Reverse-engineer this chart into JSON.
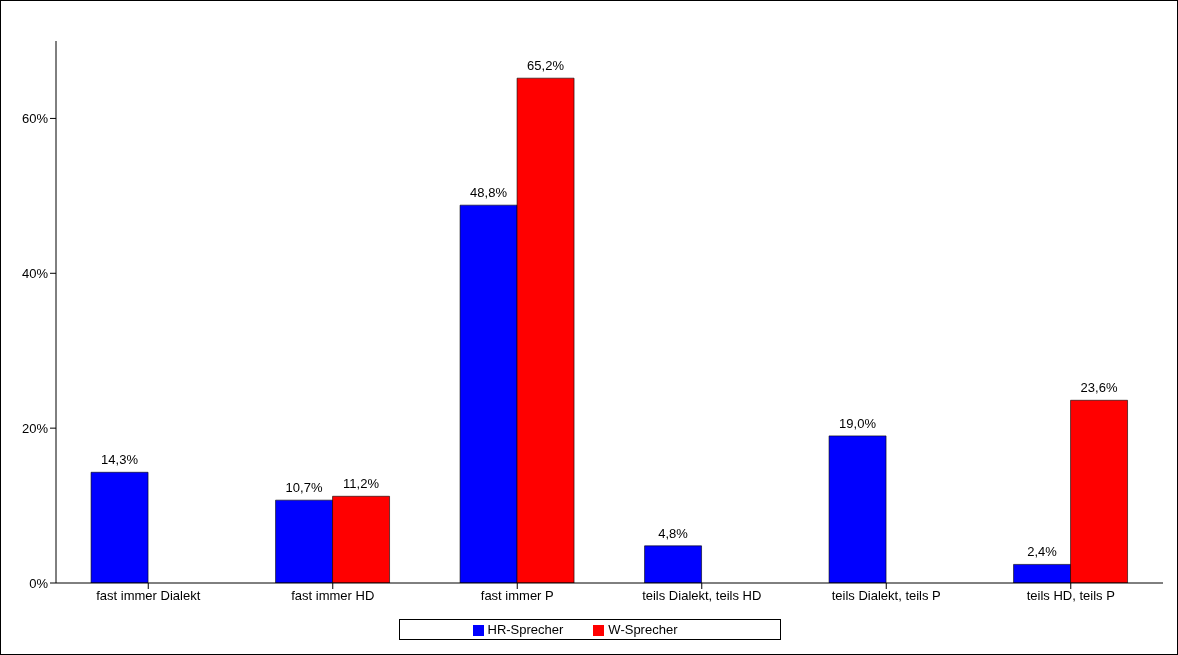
{
  "chart_data": {
    "type": "bar",
    "categories": [
      "fast immer Dialekt",
      "fast immer HD",
      "fast immer P",
      "teils Dialekt, teils HD",
      "teils Dialekt, teils P",
      "teils HD, teils P"
    ],
    "series": [
      {
        "name": "HR-Sprecher",
        "color": "#0000ff",
        "values": [
          14.3,
          10.7,
          48.8,
          4.8,
          19.0,
          2.4
        ],
        "value_labels": [
          "14,3%",
          "10,7%",
          "48,8%",
          "4,8%",
          "19,0%",
          "2,4%"
        ]
      },
      {
        "name": "W-Sprecher",
        "color": "#ff0000",
        "values": [
          null,
          11.2,
          65.2,
          null,
          null,
          23.6
        ],
        "value_labels": [
          null,
          "11,2%",
          "65,2%",
          null,
          null,
          "23,6%"
        ]
      }
    ],
    "ylim": [
      0,
      70
    ],
    "yticks": [
      {
        "value": 0,
        "label": "0%"
      },
      {
        "value": 20,
        "label": "20%"
      },
      {
        "value": 40,
        "label": "40%"
      },
      {
        "value": 60,
        "label": "60%"
      }
    ],
    "grid": false,
    "legend": "bottom"
  }
}
